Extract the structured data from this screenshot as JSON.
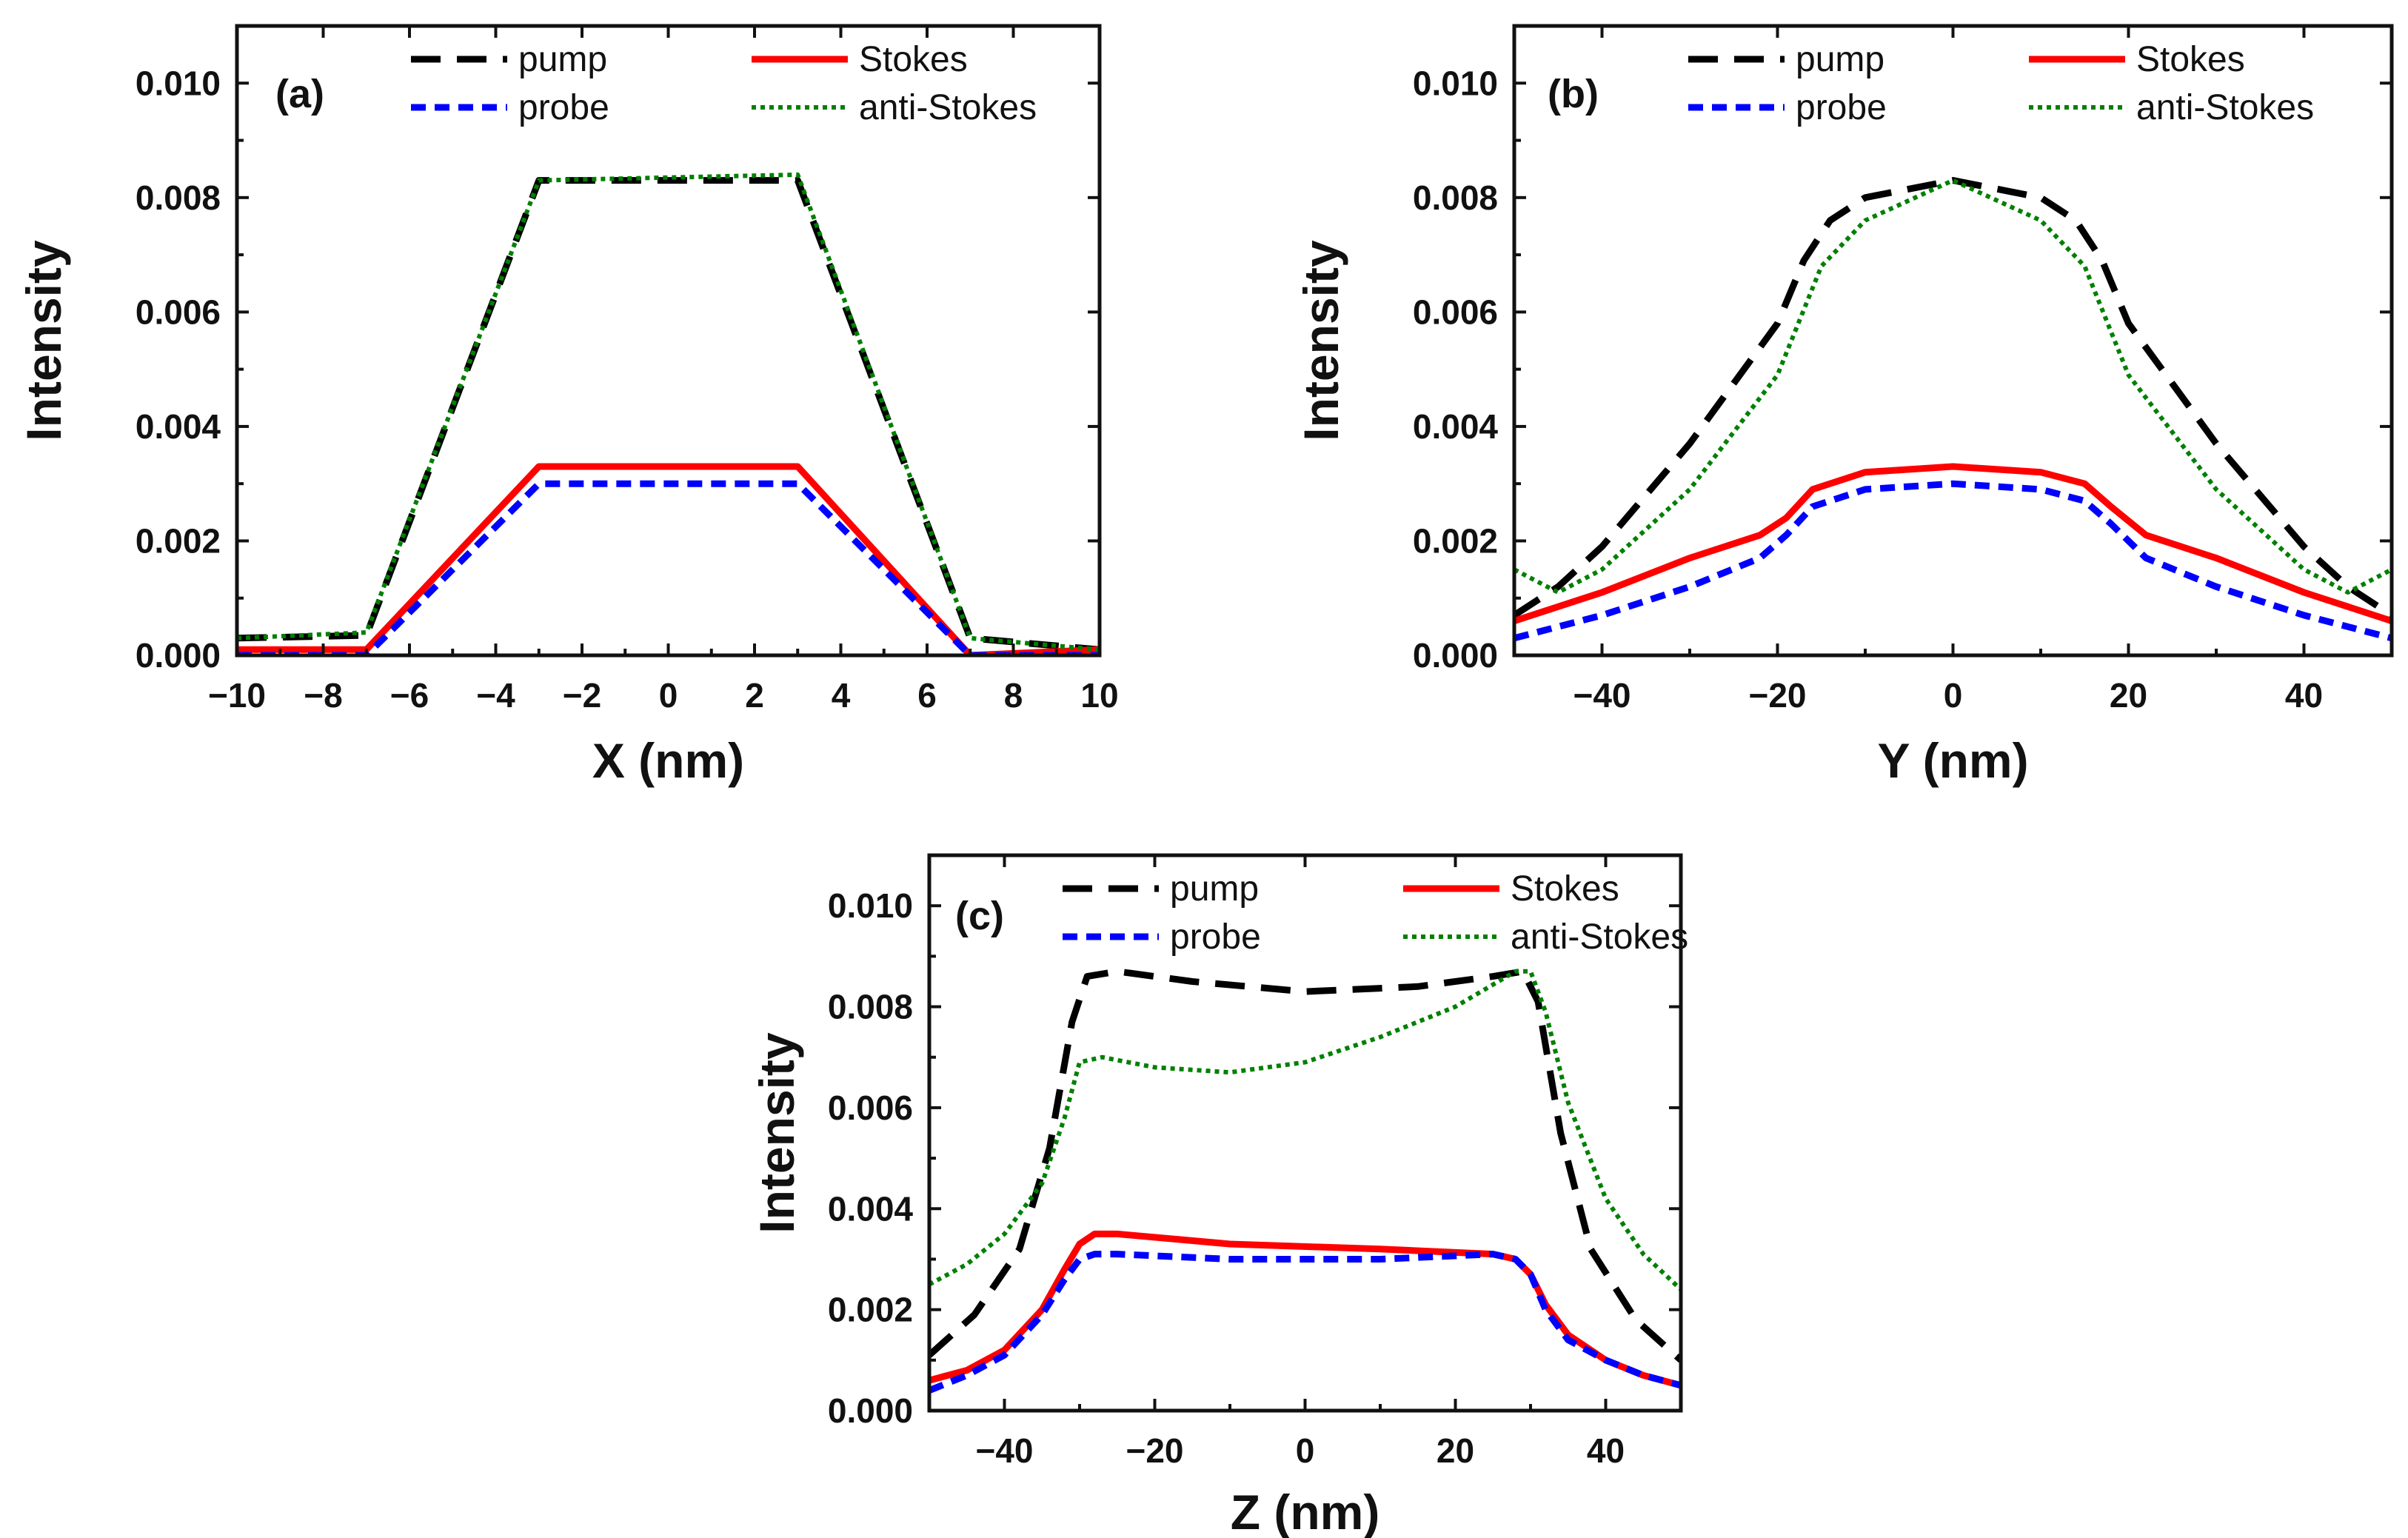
{
  "legend_labels": {
    "pump": "pump",
    "Stokes": "Stokes",
    "probe": "probe",
    "anti_Stokes": "anti-Stokes"
  },
  "colors": {
    "pump": "#000000",
    "Stokes": "#ff0000",
    "probe": "#0000ff",
    "anti_Stokes": "#008000"
  },
  "chart_data": [
    {
      "type": "line",
      "panel": "(a)",
      "xlabel": "X (nm)",
      "ylabel": "Intensity",
      "xlim": [
        -10,
        10
      ],
      "ylim": [
        0,
        0.011
      ],
      "xticks": [
        -10,
        -8,
        -6,
        -4,
        -2,
        0,
        2,
        4,
        6,
        8,
        10
      ],
      "xtick_labels": [
        "−10",
        "−8",
        "−6",
        "−4",
        "−2",
        "0",
        "2",
        "4",
        "6",
        "8",
        "10"
      ],
      "yticks": [
        0,
        0.002,
        0.004,
        0.006,
        0.008,
        0.01
      ],
      "ytick_labels": [
        "0.000",
        "0.002",
        "0.004",
        "0.006",
        "0.008",
        "0.010"
      ],
      "series": [
        {
          "name": "pump",
          "x": [
            -10,
            -7,
            -3,
            3,
            7,
            10
          ],
          "y": [
            0.0003,
            0.00035,
            0.0083,
            0.0083,
            0.0003,
            0.0001
          ]
        },
        {
          "name": "Stokes",
          "x": [
            -10,
            -7,
            -3,
            3,
            7,
            10
          ],
          "y": [
            0.0001,
            0.0001,
            0.0033,
            0.0033,
            0.0,
            0.0001
          ]
        },
        {
          "name": "probe",
          "x": [
            -10,
            -7,
            -3,
            3,
            7,
            10
          ],
          "y": [
            0.0,
            0.0,
            0.003,
            0.003,
            0.0,
            0.0
          ]
        },
        {
          "name": "anti-Stokes",
          "x": [
            -10,
            -7,
            -3,
            3,
            7,
            10
          ],
          "y": [
            0.0003,
            0.0004,
            0.0083,
            0.0084,
            0.0003,
            0.0001
          ]
        }
      ]
    },
    {
      "type": "line",
      "panel": "(b)",
      "xlabel": "Y (nm)",
      "ylabel": "Intensity",
      "xlim": [
        -50,
        50
      ],
      "ylim": [
        0,
        0.011
      ],
      "xticks": [
        -40,
        -20,
        0,
        20,
        40
      ],
      "xtick_labels": [
        "−40",
        "−20",
        "0",
        "20",
        "40"
      ],
      "yticks": [
        0,
        0.002,
        0.004,
        0.006,
        0.008,
        0.01
      ],
      "ytick_labels": [
        "0.000",
        "0.002",
        "0.004",
        "0.006",
        "0.008",
        "0.010"
      ],
      "series": [
        {
          "name": "pump",
          "x": [
            -50,
            -45,
            -40,
            -30,
            -20,
            -17,
            -14,
            -10,
            0,
            10,
            14,
            17,
            20,
            30,
            40,
            45,
            50
          ],
          "y": [
            0.0007,
            0.0012,
            0.0019,
            0.0037,
            0.0058,
            0.0069,
            0.0076,
            0.008,
            0.0083,
            0.008,
            0.0076,
            0.0069,
            0.0058,
            0.0037,
            0.0019,
            0.0012,
            0.0007
          ]
        },
        {
          "name": "Stokes",
          "x": [
            -50,
            -40,
            -30,
            -22,
            -19,
            -16,
            -10,
            0,
            10,
            15,
            18,
            22,
            30,
            40,
            50
          ],
          "y": [
            0.0006,
            0.0011,
            0.0017,
            0.0021,
            0.0024,
            0.0029,
            0.0032,
            0.0033,
            0.0032,
            0.003,
            0.0026,
            0.0021,
            0.0017,
            0.0011,
            0.0006
          ]
        },
        {
          "name": "probe",
          "x": [
            -50,
            -40,
            -30,
            -22,
            -19,
            -16,
            -10,
            0,
            10,
            15,
            18,
            22,
            30,
            40,
            50
          ],
          "y": [
            0.0003,
            0.0007,
            0.0012,
            0.0017,
            0.0021,
            0.0026,
            0.0029,
            0.003,
            0.0029,
            0.0027,
            0.0023,
            0.0017,
            0.0012,
            0.0007,
            0.0003
          ]
        },
        {
          "name": "anti-Stokes",
          "x": [
            -50,
            -45,
            -40,
            -30,
            -20,
            -15,
            -10,
            0,
            10,
            15,
            20,
            30,
            40,
            45,
            50
          ],
          "y": [
            0.0015,
            0.0011,
            0.0015,
            0.0029,
            0.0049,
            0.0068,
            0.0076,
            0.0083,
            0.0076,
            0.0068,
            0.0049,
            0.0029,
            0.0015,
            0.0011,
            0.0015
          ]
        }
      ]
    },
    {
      "type": "line",
      "panel": "(c)",
      "xlabel": "Z (nm)",
      "ylabel": "Intensity",
      "xlim": [
        -50,
        50
      ],
      "ylim": [
        0,
        0.011
      ],
      "xticks": [
        -40,
        -20,
        0,
        20,
        40
      ],
      "xtick_labels": [
        "−40",
        "−20",
        "0",
        "20",
        "40"
      ],
      "yticks": [
        0,
        0.002,
        0.004,
        0.006,
        0.008,
        0.01
      ],
      "ytick_labels": [
        "0.000",
        "0.002",
        "0.004",
        "0.006",
        "0.008",
        "0.010"
      ],
      "series": [
        {
          "name": "pump",
          "x": [
            -50,
            -44,
            -38,
            -34,
            -31,
            -29,
            -25,
            -15,
            0,
            15,
            25,
            29,
            31,
            34,
            38,
            44,
            50
          ],
          "y": [
            0.0011,
            0.0019,
            0.0032,
            0.0052,
            0.0077,
            0.0086,
            0.0087,
            0.0085,
            0.0083,
            0.0084,
            0.0086,
            0.0087,
            0.0081,
            0.0055,
            0.0032,
            0.0018,
            0.001
          ]
        },
        {
          "name": "Stokes",
          "x": [
            -50,
            -45,
            -40,
            -35,
            -32,
            -30,
            -28,
            -25,
            -10,
            10,
            25,
            28,
            30,
            32,
            35,
            40,
            45,
            50
          ],
          "y": [
            0.0006,
            0.0008,
            0.0012,
            0.002,
            0.0028,
            0.0033,
            0.0035,
            0.0035,
            0.0033,
            0.0032,
            0.0031,
            0.003,
            0.0027,
            0.0021,
            0.0015,
            0.001,
            0.0007,
            0.0005
          ]
        },
        {
          "name": "probe",
          "x": [
            -50,
            -45,
            -40,
            -35,
            -32,
            -30,
            -28,
            -25,
            -10,
            10,
            25,
            28,
            30,
            32,
            35,
            40,
            45,
            50
          ],
          "y": [
            0.0004,
            0.0007,
            0.0011,
            0.0019,
            0.0026,
            0.003,
            0.0031,
            0.0031,
            0.003,
            0.003,
            0.0031,
            0.003,
            0.0027,
            0.002,
            0.0014,
            0.001,
            0.0007,
            0.0005
          ]
        },
        {
          "name": "anti-Stokes",
          "x": [
            -50,
            -45,
            -40,
            -35,
            -32,
            -30,
            -27,
            -20,
            -10,
            0,
            10,
            20,
            28,
            30,
            32,
            35,
            40,
            45,
            50
          ],
          "y": [
            0.0025,
            0.0029,
            0.0035,
            0.0045,
            0.0058,
            0.0069,
            0.007,
            0.0068,
            0.0067,
            0.0069,
            0.0074,
            0.008,
            0.0087,
            0.0087,
            0.0079,
            0.0061,
            0.0042,
            0.0031,
            0.0024
          ]
        }
      ]
    }
  ]
}
